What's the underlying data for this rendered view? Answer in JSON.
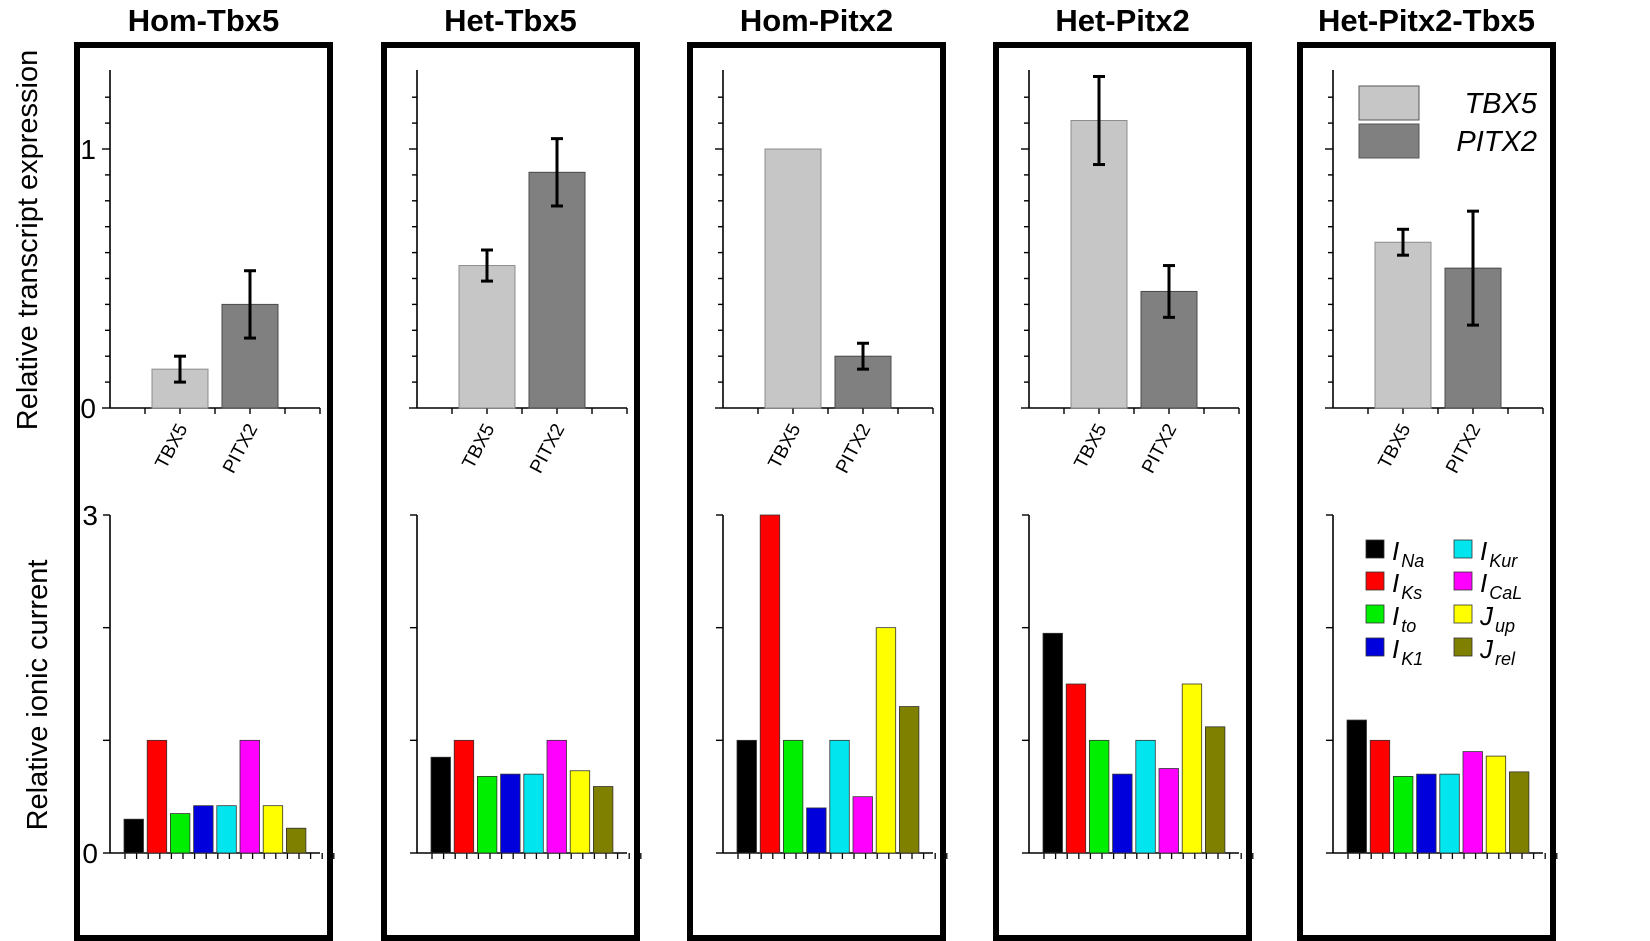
{
  "chart_data": [
    {
      "type": "bar",
      "title": "Relative transcript expression",
      "ylabel": "Relative transcript expression",
      "ylim": [
        0,
        1.25
      ],
      "ytick_labels": [
        "0",
        "1"
      ],
      "categories": [
        "TBX5",
        "PITX2"
      ],
      "colors": [
        "#c6c6c6",
        "#808080"
      ],
      "legend": {
        "placement": "top-right",
        "panel": "Het-Pitx2-Tbx5",
        "entries": [
          "TBX5",
          "PITX2"
        ]
      },
      "panels": [
        {
          "title": "Hom-Tbx5",
          "values": [
            0.15,
            0.4
          ],
          "errors": [
            0.05,
            0.13
          ]
        },
        {
          "title": "Het-Tbx5",
          "values": [
            0.55,
            0.91
          ],
          "errors": [
            0.06,
            0.13
          ]
        },
        {
          "title": "Hom-Pitx2",
          "values": [
            1.0,
            0.2
          ],
          "errors": [
            0.0,
            0.05
          ]
        },
        {
          "title": "Het-Pitx2",
          "values": [
            1.11,
            0.45
          ],
          "errors": [
            0.17,
            0.1
          ]
        },
        {
          "title": "Het-Pitx2-Tbx5",
          "values": [
            0.64,
            0.54
          ],
          "errors": [
            0.05,
            0.22
          ]
        }
      ]
    },
    {
      "type": "bar",
      "title": "Relative ionic current",
      "ylabel": "Relative ionic current",
      "ylim": [
        0,
        3
      ],
      "ytick_labels": [
        "0",
        "3"
      ],
      "series": [
        {
          "name": "I_Na",
          "base": "I",
          "sub": "Na",
          "color": "#000000"
        },
        {
          "name": "I_Ks",
          "base": "I",
          "sub": "Ks",
          "color": "#ff0000"
        },
        {
          "name": "I_to",
          "base": "I",
          "sub": "to",
          "color": "#00ee00"
        },
        {
          "name": "I_Kur",
          "base": "I",
          "sub": "Kur",
          "color": "#00e5ee"
        },
        {
          "name": "I_CaL",
          "base": "I",
          "sub": "CaL",
          "color": "#ff00ff"
        },
        {
          "name": "I_K1",
          "base": "I",
          "sub": "K1",
          "color": "#0000dd"
        },
        {
          "name": "J_up",
          "base": "J",
          "sub": "up",
          "color": "#ffff00"
        },
        {
          "name": "J_rel",
          "base": "J",
          "sub": "rel",
          "color": "#808000"
        }
      ],
      "bar_order": [
        "I_Na",
        "I_Ks",
        "I_to",
        "I_K1",
        "I_Kur",
        "I_CaL",
        "J_up",
        "J_rel"
      ],
      "legend": {
        "placement": "top-right",
        "panel": "Het-Pitx2-Tbx5"
      },
      "panels": [
        {
          "title": "Hom-Tbx5",
          "values": [
            0.3,
            1.0,
            0.35,
            0.42,
            0.42,
            1.0,
            0.42,
            0.22
          ]
        },
        {
          "title": "Het-Tbx5",
          "values": [
            0.85,
            1.0,
            0.68,
            0.7,
            0.7,
            1.0,
            0.73,
            0.59
          ]
        },
        {
          "title": "Hom-Pitx2",
          "values": [
            1.0,
            3.0,
            1.0,
            0.4,
            1.0,
            0.5,
            2.0,
            1.3
          ]
        },
        {
          "title": "Het-Pitx2",
          "values": [
            1.95,
            1.5,
            1.0,
            0.7,
            1.0,
            0.75,
            1.5,
            1.12
          ]
        },
        {
          "title": "Het-Pitx2-Tbx5",
          "values": [
            1.18,
            1.0,
            0.68,
            0.7,
            0.7,
            0.9,
            0.86,
            0.72
          ]
        }
      ]
    }
  ]
}
